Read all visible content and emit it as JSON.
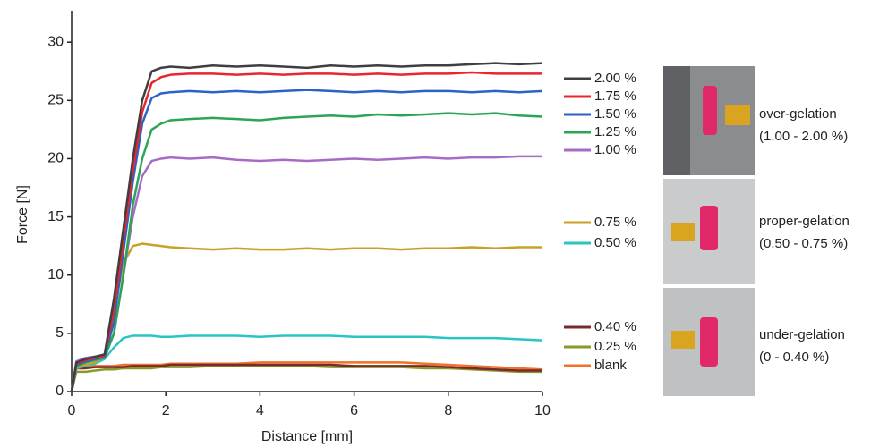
{
  "chart_data": {
    "type": "line",
    "xlabel": "Distance [mm]",
    "ylabel": "Force [N]",
    "xlim": [
      0,
      10
    ],
    "ylim": [
      0,
      32.7
    ],
    "xticks": [
      0,
      2,
      4,
      6,
      8,
      10
    ],
    "yticks": [
      0,
      5,
      10,
      15,
      20,
      25,
      30
    ],
    "x": [
      0,
      0.1,
      0.3,
      0.5,
      0.7,
      0.9,
      1.1,
      1.3,
      1.5,
      1.7,
      1.9,
      2.1,
      2.5,
      3,
      3.5,
      4,
      4.5,
      5,
      5.5,
      6,
      6.5,
      7,
      7.5,
      8,
      8.5,
      9,
      9.5,
      10
    ],
    "series": [
      {
        "name": "2.00 %",
        "color": "#3f3f3f",
        "values": [
          0,
          2.5,
          2.8,
          3,
          3.2,
          8,
          14,
          20,
          25,
          27.5,
          27.8,
          27.9,
          27.8,
          28,
          27.9,
          28,
          27.9,
          27.8,
          28,
          27.9,
          28,
          27.9,
          28,
          28,
          28.1,
          28.2,
          28.1,
          28.2
        ]
      },
      {
        "name": "1.75 %",
        "color": "#e8262d",
        "values": [
          0,
          2.4,
          2.7,
          2.9,
          3.1,
          7,
          13,
          19,
          24,
          26.5,
          27,
          27.2,
          27.3,
          27.3,
          27.2,
          27.3,
          27.2,
          27.3,
          27.3,
          27.2,
          27.3,
          27.2,
          27.3,
          27.3,
          27.4,
          27.3,
          27.3,
          27.3
        ]
      },
      {
        "name": "1.50 %",
        "color": "#2a63c4",
        "values": [
          0,
          2.3,
          2.6,
          2.8,
          3,
          6,
          12,
          18,
          23,
          25.2,
          25.6,
          25.7,
          25.8,
          25.7,
          25.8,
          25.7,
          25.8,
          25.9,
          25.8,
          25.7,
          25.8,
          25.7,
          25.8,
          25.8,
          25.7,
          25.8,
          25.7,
          25.8
        ]
      },
      {
        "name": "1.25 %",
        "color": "#2aa652",
        "values": [
          0,
          2.2,
          2.5,
          2.7,
          2.9,
          5,
          10,
          16,
          20,
          22.5,
          23,
          23.3,
          23.4,
          23.5,
          23.4,
          23.3,
          23.5,
          23.6,
          23.7,
          23.6,
          23.8,
          23.7,
          23.8,
          23.9,
          23.8,
          23.9,
          23.7,
          23.6
        ]
      },
      {
        "name": "1.00 %",
        "color": "#a66bc6",
        "values": [
          0,
          2.6,
          2.9,
          3,
          3.1,
          5,
          10,
          15,
          18.5,
          19.8,
          20,
          20.1,
          20,
          20.1,
          19.9,
          19.8,
          19.9,
          19.8,
          19.9,
          20,
          19.9,
          20,
          20.1,
          20,
          20.1,
          20.1,
          20.2,
          20.2
        ]
      },
      {
        "name": "0.75 %",
        "color": "#c9a02a",
        "values": [
          0,
          2.1,
          2.3,
          2.5,
          3,
          7,
          11,
          12.5,
          12.7,
          12.6,
          12.5,
          12.4,
          12.3,
          12.2,
          12.3,
          12.2,
          12.2,
          12.3,
          12.2,
          12.3,
          12.3,
          12.2,
          12.3,
          12.3,
          12.4,
          12.3,
          12.4,
          12.4
        ]
      },
      {
        "name": "0.50 %",
        "color": "#2ac4c4",
        "values": [
          0,
          2,
          2.2,
          2.4,
          2.8,
          3.8,
          4.6,
          4.8,
          4.8,
          4.8,
          4.7,
          4.7,
          4.8,
          4.8,
          4.8,
          4.7,
          4.8,
          4.8,
          4.8,
          4.7,
          4.7,
          4.7,
          4.7,
          4.6,
          4.6,
          4.6,
          4.5,
          4.4
        ]
      },
      {
        "name": "0.40 %",
        "color": "#7a2a2a",
        "values": [
          0,
          2,
          2,
          2.1,
          2.1,
          2.1,
          2.1,
          2.2,
          2.2,
          2.2,
          2.2,
          2.3,
          2.3,
          2.3,
          2.3,
          2.3,
          2.3,
          2.3,
          2.3,
          2.2,
          2.2,
          2.2,
          2.2,
          2.1,
          2.0,
          1.9,
          1.8,
          1.8
        ]
      },
      {
        "name": "0.25 %",
        "color": "#8a9a2a",
        "values": [
          0,
          1.7,
          1.7,
          1.8,
          1.9,
          1.9,
          2,
          2,
          2,
          2,
          2.1,
          2.1,
          2.1,
          2.2,
          2.2,
          2.2,
          2.2,
          2.2,
          2.1,
          2.1,
          2.1,
          2.1,
          2,
          2,
          1.9,
          1.8,
          1.7,
          1.7
        ]
      },
      {
        "name": "blank",
        "color": "#f0722a",
        "values": [
          0,
          2.2,
          2.2,
          2.2,
          2.2,
          2.2,
          2.3,
          2.3,
          2.3,
          2.3,
          2.3,
          2.4,
          2.4,
          2.4,
          2.4,
          2.5,
          2.5,
          2.5,
          2.5,
          2.5,
          2.5,
          2.5,
          2.4,
          2.3,
          2.2,
          2.1,
          2,
          1.9
        ]
      }
    ],
    "annotations": [
      {
        "label": "over-gelation",
        "range": "(1.00 - 2.00 %)"
      },
      {
        "label": "proper-gelation",
        "range": "(0.50 - 0.75 %)"
      },
      {
        "label": "under-gelation",
        "range": "(0 - 0.40 %)"
      }
    ]
  }
}
